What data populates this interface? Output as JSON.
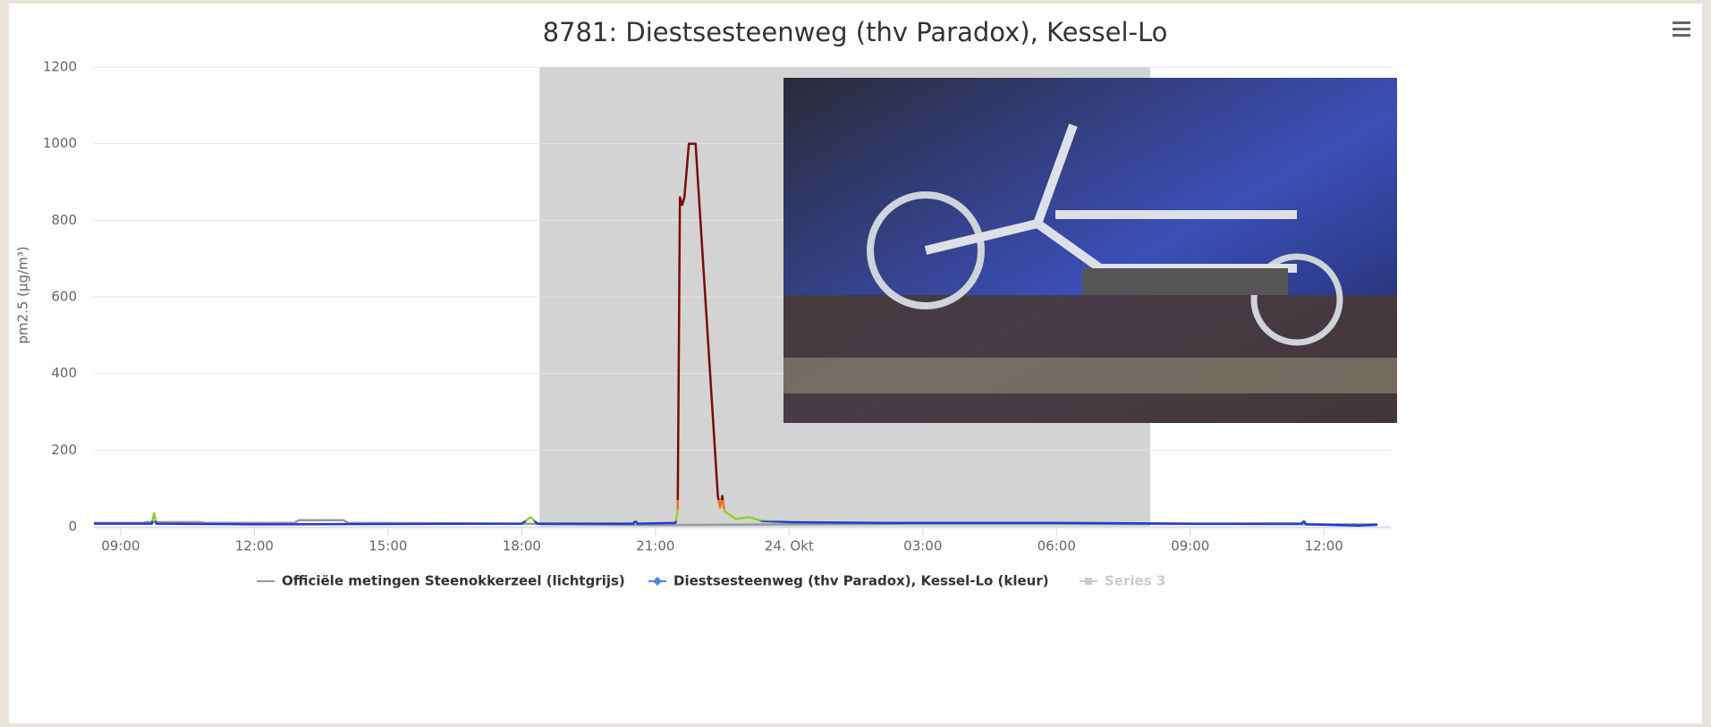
{
  "chart_data": {
    "type": "line",
    "title": "8781: Diestsesteenweg (thv Paradox), Kessel-Lo",
    "ylabel": "pm2.5 (µg/m³)",
    "xlim": [
      8.4,
      37.3
    ],
    "xticks": [
      {
        "value": 9,
        "label": "09:00"
      },
      {
        "value": 12,
        "label": "12:00"
      },
      {
        "value": 15,
        "label": "15:00"
      },
      {
        "value": 18,
        "label": "18:00"
      },
      {
        "value": 21,
        "label": "21:00"
      },
      {
        "value": 24,
        "label": "24. Okt"
      },
      {
        "value": 27,
        "label": "03:00"
      },
      {
        "value": 30,
        "label": "06:00"
      },
      {
        "value": 33,
        "label": "09:00"
      },
      {
        "value": 36,
        "label": "12:00"
      }
    ],
    "ylim": [
      0,
      1200
    ],
    "yticks": [
      0,
      200,
      400,
      600,
      800,
      1000,
      1200
    ],
    "grid": true,
    "bands": [
      {
        "from": 18.4,
        "to": 32.1,
        "color": "#d3d3d3"
      }
    ],
    "legend": "bottom",
    "series": [
      {
        "name": "Officiële metingen Steenokkerzeel (lichtgrijs)",
        "color": "#999999",
        "x": [
          8.4,
          9.5,
          9.6,
          10.8,
          10.9,
          12.9,
          13,
          14,
          14.1,
          18,
          21,
          24,
          27,
          30,
          33,
          36,
          37.2
        ],
        "values": [
          10,
          10,
          12,
          12,
          10,
          10,
          17,
          17,
          10,
          8,
          4,
          6,
          8,
          8,
          7,
          6,
          6
        ]
      },
      {
        "name": "Diestsesteenweg (thv Paradox), Kessel-Lo (kleur)",
        "color": "#4f86e0",
        "zones": [
          {
            "up_to": 15,
            "color": "#1e3bd0"
          },
          {
            "up_to": 45,
            "color": "#8fd12b"
          },
          {
            "up_to": 70,
            "color": "#e8701a"
          },
          {
            "up_to": 1200,
            "color": "#7a0a0a"
          }
        ],
        "x": [
          8.4,
          9.7,
          9.75,
          9.8,
          12,
          15,
          18,
          18.2,
          18.35,
          20.5,
          20.55,
          20.6,
          21.45,
          21.5,
          21.55,
          21.6,
          21.65,
          21.75,
          21.9,
          22.4,
          22.45,
          22.5,
          22.55,
          22.8,
          23.1,
          23.4,
          24,
          26,
          30,
          33,
          35.5,
          35.55,
          35.6,
          36.8,
          37.2
        ],
        "values": [
          8,
          8,
          35,
          8,
          6,
          7,
          8,
          25,
          8,
          8,
          15,
          8,
          10,
          40,
          860,
          840,
          860,
          1000,
          1000,
          80,
          50,
          80,
          40,
          20,
          25,
          15,
          12,
          10,
          10,
          8,
          8,
          15,
          6,
          3,
          5
        ]
      },
      {
        "name": "Series 3",
        "color": "#cccccc",
        "visible": false,
        "x": [],
        "values": []
      }
    ]
  }
}
